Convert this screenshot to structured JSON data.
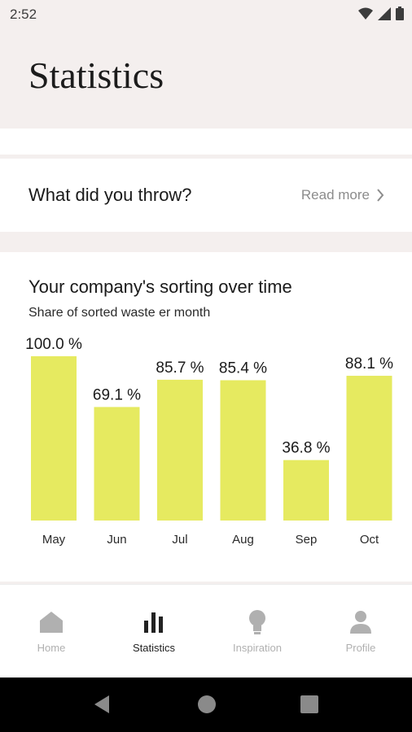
{
  "status_bar": {
    "time": "2:52",
    "icons": [
      "wifi-icon",
      "signal-icon",
      "battery-icon"
    ]
  },
  "page": {
    "title": "Statistics"
  },
  "throw_card": {
    "title": "What did you throw?",
    "read_more": "Read more",
    "icon": "chevron-right-icon"
  },
  "chart_card": {
    "title": "Your company's sorting over time",
    "subtitle": "Share of sorted waste er month"
  },
  "chart_data": {
    "type": "bar",
    "title": "Your company's sorting over time",
    "subtitle": "Share of sorted waste er month",
    "categories": [
      "May",
      "Jun",
      "Jul",
      "Aug",
      "Sep",
      "Oct"
    ],
    "values": [
      100.0,
      69.1,
      85.7,
      85.4,
      36.8,
      88.1
    ],
    "value_labels": [
      "100.0 %",
      "69.1 %",
      "85.7 %",
      "85.4 %",
      "36.8 %",
      "88.1 %"
    ],
    "ylim": [
      0,
      100
    ],
    "bar_color": "#e6ea60",
    "grid": false
  },
  "bottom_nav": {
    "items": [
      {
        "label": "Home",
        "icon": "home-icon",
        "active": false
      },
      {
        "label": "Statistics",
        "icon": "bar-chart-icon",
        "active": true
      },
      {
        "label": "Inspiration",
        "icon": "lightbulb-icon",
        "active": false
      },
      {
        "label": "Profile",
        "icon": "person-icon",
        "active": false
      }
    ]
  },
  "system_nav": {
    "buttons": [
      "back-icon",
      "home-circle-icon",
      "recents-icon"
    ]
  },
  "colors": {
    "background": "#f4efee",
    "bar": "#e6ea60",
    "inactive": "#b0b0b0",
    "active": "#222222"
  }
}
